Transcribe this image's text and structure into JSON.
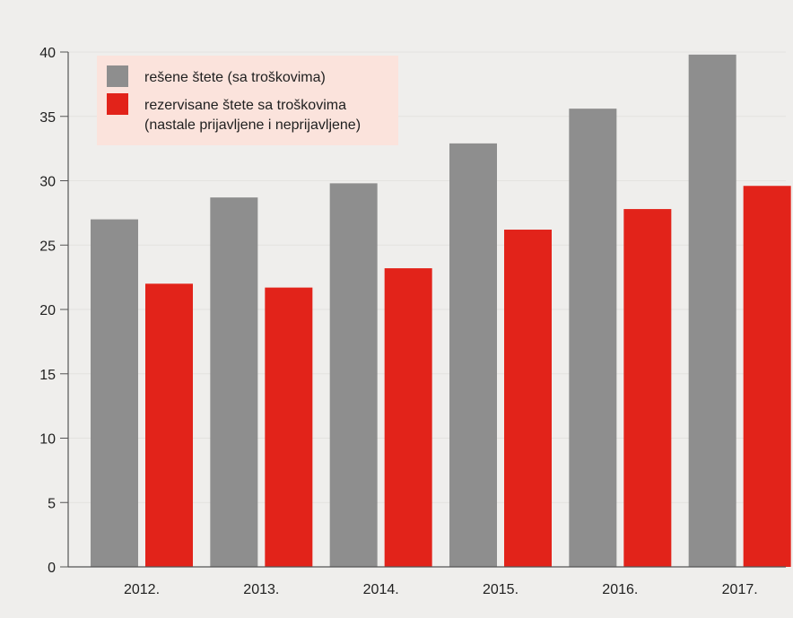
{
  "chart_data": {
    "type": "bar",
    "categories": [
      "2012.",
      "2013.",
      "2014.",
      "2015.",
      "2016.",
      "2017."
    ],
    "series": [
      {
        "name": "rešene štete (sa troškovima)",
        "color": "#8e8e8e",
        "values": [
          27.0,
          28.7,
          29.8,
          32.9,
          35.6,
          39.8
        ]
      },
      {
        "name": "rezervisane štete sa troškovima (nastale prijavljene i neprijavljene)",
        "color": "#e2231a",
        "values": [
          22.0,
          21.7,
          23.2,
          26.2,
          27.8,
          29.6
        ]
      }
    ],
    "yticks": [
      "0",
      "5",
      "10",
      "15",
      "20",
      "25",
      "30",
      "35",
      "40"
    ],
    "ylim": [
      0,
      40
    ],
    "legend": {
      "items": [
        {
          "lines": [
            "rešene štete (sa troškovima)"
          ],
          "color": "#8e8e8e"
        },
        {
          "lines": [
            "rezervisane štete sa troškovima",
            "(nastale prijavljene i neprijavljene)"
          ],
          "color": "#e2231a"
        }
      ],
      "background": "#fbe3dc",
      "position": "top-left"
    },
    "title": "",
    "xlabel": "",
    "ylabel": ""
  }
}
